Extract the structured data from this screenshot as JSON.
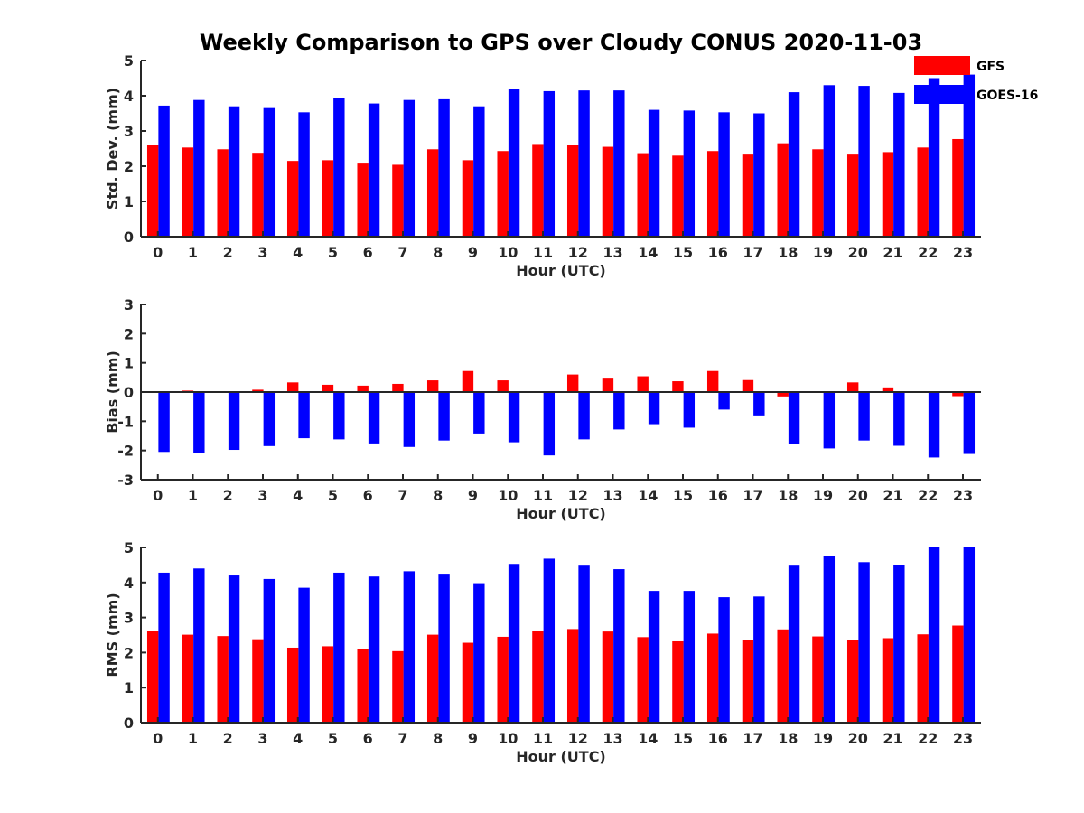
{
  "title": "Weekly Comparison to GPS over Cloudy CONUS 2020-11-03",
  "colors": {
    "gfs": "#ff0000",
    "goes": "#0000ff",
    "axis": "#262626"
  },
  "chart_data": [
    {
      "type": "bar",
      "categories": [
        "0",
        "1",
        "2",
        "3",
        "4",
        "5",
        "6",
        "7",
        "8",
        "9",
        "10",
        "11",
        "12",
        "13",
        "14",
        "15",
        "16",
        "17",
        "18",
        "19",
        "20",
        "21",
        "22",
        "23"
      ],
      "xlabel": "Hour (UTC)",
      "ylabel": "Std. Dev. (mm)",
      "ylim": [
        0,
        5
      ],
      "yticks": [
        "0",
        "1",
        "2",
        "3",
        "4",
        "5"
      ],
      "legend": {
        "position": "top-right"
      },
      "series": [
        {
          "name": "GFS",
          "values": [
            2.6,
            2.53,
            2.48,
            2.38,
            2.15,
            2.17,
            2.1,
            2.04,
            2.48,
            2.17,
            2.43,
            2.63,
            2.6,
            2.55,
            2.37,
            2.3,
            2.43,
            2.33,
            2.65,
            2.48,
            2.33,
            2.4,
            2.53,
            2.77
          ]
        },
        {
          "name": "GOES-16",
          "values": [
            3.72,
            3.88,
            3.7,
            3.65,
            3.53,
            3.93,
            3.78,
            3.88,
            3.9,
            3.7,
            4.18,
            4.13,
            4.15,
            4.15,
            3.6,
            3.58,
            3.53,
            3.5,
            4.1,
            4.3,
            4.28,
            4.08,
            4.5,
            4.6
          ]
        }
      ]
    },
    {
      "type": "bar",
      "categories": [
        "0",
        "1",
        "2",
        "3",
        "4",
        "5",
        "6",
        "7",
        "8",
        "9",
        "10",
        "11",
        "12",
        "13",
        "14",
        "15",
        "16",
        "17",
        "18",
        "19",
        "20",
        "21",
        "22",
        "23"
      ],
      "xlabel": "Hour (UTC)",
      "ylabel": "Bias (mm)",
      "ylim": [
        -3,
        3
      ],
      "yticks": [
        "-3",
        "-2",
        "-1",
        "0",
        "1",
        "2",
        "3"
      ],
      "series": [
        {
          "name": "GFS",
          "values": [
            0.0,
            0.05,
            0.03,
            0.08,
            0.33,
            0.25,
            0.22,
            0.28,
            0.4,
            0.72,
            0.4,
            0.03,
            0.6,
            0.46,
            0.54,
            0.37,
            0.72,
            0.41,
            -0.15,
            -0.02,
            0.33,
            0.16,
            -0.03,
            -0.14
          ]
        },
        {
          "name": "GOES-16",
          "values": [
            -2.05,
            -2.08,
            -1.98,
            -1.85,
            -1.58,
            -1.62,
            -1.76,
            -1.88,
            -1.66,
            -1.42,
            -1.72,
            -2.17,
            -1.62,
            -1.28,
            -1.1,
            -1.22,
            -0.6,
            -0.8,
            -1.78,
            -1.93,
            -1.66,
            -1.84,
            -2.24,
            -2.12
          ]
        }
      ]
    },
    {
      "type": "bar",
      "categories": [
        "0",
        "1",
        "2",
        "3",
        "4",
        "5",
        "6",
        "7",
        "8",
        "9",
        "10",
        "11",
        "12",
        "13",
        "14",
        "15",
        "16",
        "17",
        "18",
        "19",
        "20",
        "21",
        "22",
        "23"
      ],
      "xlabel": "Hour (UTC)",
      "ylabel": "RMS (mm)",
      "ylim": [
        0,
        5
      ],
      "yticks": [
        "0",
        "1",
        "2",
        "3",
        "4",
        "5"
      ],
      "series": [
        {
          "name": "GFS",
          "values": [
            2.61,
            2.51,
            2.47,
            2.38,
            2.14,
            2.18,
            2.1,
            2.04,
            2.51,
            2.28,
            2.45,
            2.62,
            2.67,
            2.6,
            2.44,
            2.32,
            2.54,
            2.35,
            2.66,
            2.46,
            2.35,
            2.41,
            2.52,
            2.77
          ]
        },
        {
          "name": "GOES-16",
          "values": [
            4.28,
            4.4,
            4.2,
            4.1,
            3.85,
            4.28,
            4.17,
            4.32,
            4.25,
            3.98,
            4.53,
            4.68,
            4.48,
            4.38,
            3.76,
            3.76,
            3.58,
            3.6,
            4.48,
            4.75,
            4.58,
            4.5,
            5.0,
            5.0
          ]
        }
      ]
    }
  ]
}
